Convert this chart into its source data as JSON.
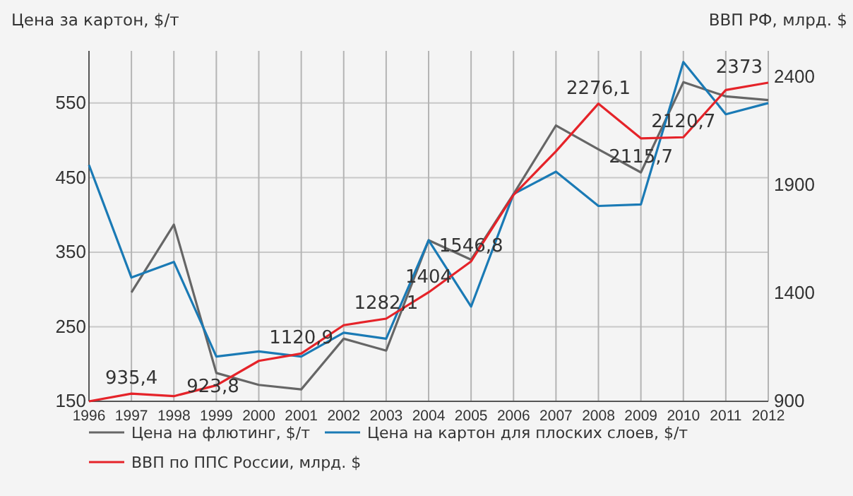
{
  "chart_data": {
    "type": "line",
    "ylabel": "Цена за картон, $/т",
    "y2label": "ВВП РФ, млрд. $",
    "categories": [
      "1996",
      "1997",
      "1998",
      "1999",
      "2000",
      "2001",
      "2002",
      "2003",
      "2004",
      "2005",
      "2006",
      "2007",
      "2008",
      "2009",
      "2010",
      "2011",
      "2012"
    ],
    "ylim": [
      150,
      620
    ],
    "yticks": [
      150,
      250,
      350,
      450,
      550
    ],
    "y2lim": [
      900,
      2520
    ],
    "y2ticks": [
      900,
      1400,
      1900,
      2400
    ],
    "grid": true,
    "legend": "bottom",
    "series": [
      {
        "name": "Цена на флютинг, $/т",
        "color": "#666666",
        "values": [
          null,
          296,
          387,
          188,
          172,
          166,
          234,
          218,
          366,
          340,
          428,
          520,
          488,
          457,
          578,
          559,
          554
        ]
      },
      {
        "name": "Цена на картон для плоских слоев, $/т",
        "color": "#1a7ab5",
        "values": [
          467,
          316,
          337,
          210,
          217,
          210,
          242,
          234,
          366,
          277,
          428,
          458,
          412,
          414,
          605,
          535,
          550
        ]
      },
      {
        "name": "ВВП по ППС России, млрд. $",
        "color": "#e52329",
        "axis": "y2",
        "values": [
          900,
          935.4,
          923.8,
          974,
          1087,
          1120.9,
          1252,
          1282.1,
          1404,
          1546.8,
          1854,
          2056,
          2276.1,
          2115.7,
          2120.7,
          2339,
          2373
        ],
        "value_labels": [
          null,
          "935,4",
          "923,8",
          null,
          null,
          "1120,9",
          null,
          "1282,1",
          "1404",
          "1546,8",
          null,
          null,
          "2276,1",
          "2115,7",
          "2120,7",
          null,
          "2373"
        ]
      }
    ]
  }
}
